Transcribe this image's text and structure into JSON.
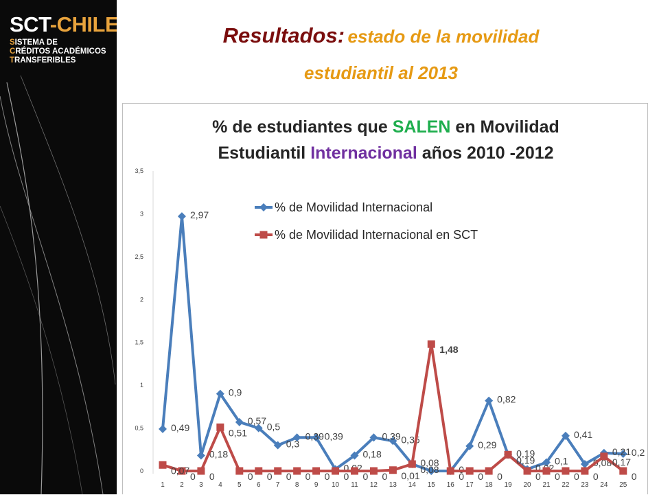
{
  "logo": {
    "brand_a": "SCT",
    "brand_b": "-CHILE",
    "lines": [
      {
        "cap": "S",
        "rest": "ISTEMA DE"
      },
      {
        "cap": "C",
        "rest": "RÉDITOS ACADÉMICOS"
      },
      {
        "cap": "T",
        "rest": "RANSFERIBLES"
      }
    ]
  },
  "slide_title": {
    "lead": "Resultados:",
    "rest_line1": "estado de la movilidad",
    "rest_line2": "estudiantil al 2013"
  },
  "colors": {
    "series1": "#4a7ebb",
    "series2": "#be4b48",
    "title_green": "#1fae4e",
    "title_purple": "#7030a0",
    "sidebar_bg": "#0a0a0a",
    "accent": "#e8a33c"
  },
  "chart_data": {
    "type": "line",
    "title_parts": [
      {
        "text": "% de estudiantes que ",
        "color": "#262626",
        "line": 1
      },
      {
        "text": "SALEN",
        "color": "#1fae4e",
        "line": 1
      },
      {
        "text": " en Movilidad",
        "color": "#262626",
        "line": 1
      },
      {
        "text": "Estudiantil ",
        "color": "#262626",
        "line": 2
      },
      {
        "text": "Internacional",
        "color": "#7030a0",
        "line": 2
      },
      {
        "text": " años 2010 -2012",
        "color": "#262626",
        "line": 2
      }
    ],
    "x": [
      1,
      2,
      3,
      4,
      5,
      6,
      7,
      8,
      9,
      10,
      11,
      12,
      13,
      14,
      15,
      16,
      17,
      18,
      19,
      20,
      21,
      22,
      23,
      24,
      25
    ],
    "ylim": [
      0,
      3.5
    ],
    "yticks": [
      "0",
      "0,5",
      "1",
      "1,5",
      "2",
      "2,5",
      "3",
      "3,5"
    ],
    "legend_position": "top",
    "grid": false,
    "series": [
      {
        "name": "% de Movilidad Internacional",
        "marker": "diamond",
        "values": [
          0.49,
          2.97,
          0.18,
          0.9,
          0.57,
          0.5,
          0.3,
          0.39,
          0.39,
          0.02,
          0.18,
          0.39,
          0.35,
          0.08,
          0,
          0,
          0.29,
          0.82,
          0.19,
          0.02,
          0.1,
          0.41,
          0.08,
          0.21,
          0.2
        ],
        "labels": [
          "0,49",
          "2,97",
          "0,18",
          "0,9",
          "0,57",
          "0,5",
          "0,3",
          "0,39",
          "0,39",
          "0,02",
          "0,18",
          "0,39",
          "0,35",
          "0,08",
          "",
          "0",
          "0,29",
          "0,82",
          "0,19",
          "0,02",
          "0,1",
          "0,41",
          "0,08",
          "0,21",
          "0,2"
        ]
      },
      {
        "name": "% de Movilidad Internacional en SCT",
        "marker": "square",
        "values": [
          0.07,
          0,
          0,
          0.51,
          0,
          0,
          0,
          0,
          0,
          0,
          0,
          0,
          0.01,
          0.08,
          1.48,
          0,
          0,
          0,
          0.19,
          0,
          0,
          0,
          0,
          0.17,
          0
        ],
        "labels": [
          "0,07",
          "0",
          "0",
          "0,51",
          "0",
          "0",
          "0",
          "0",
          "0",
          "0",
          "0",
          "0",
          "0,01",
          "0,08",
          "1,48",
          "0",
          "0",
          "0",
          "0,19",
          "0",
          "0",
          "0",
          "0",
          "0,17",
          "0"
        ]
      }
    ]
  }
}
